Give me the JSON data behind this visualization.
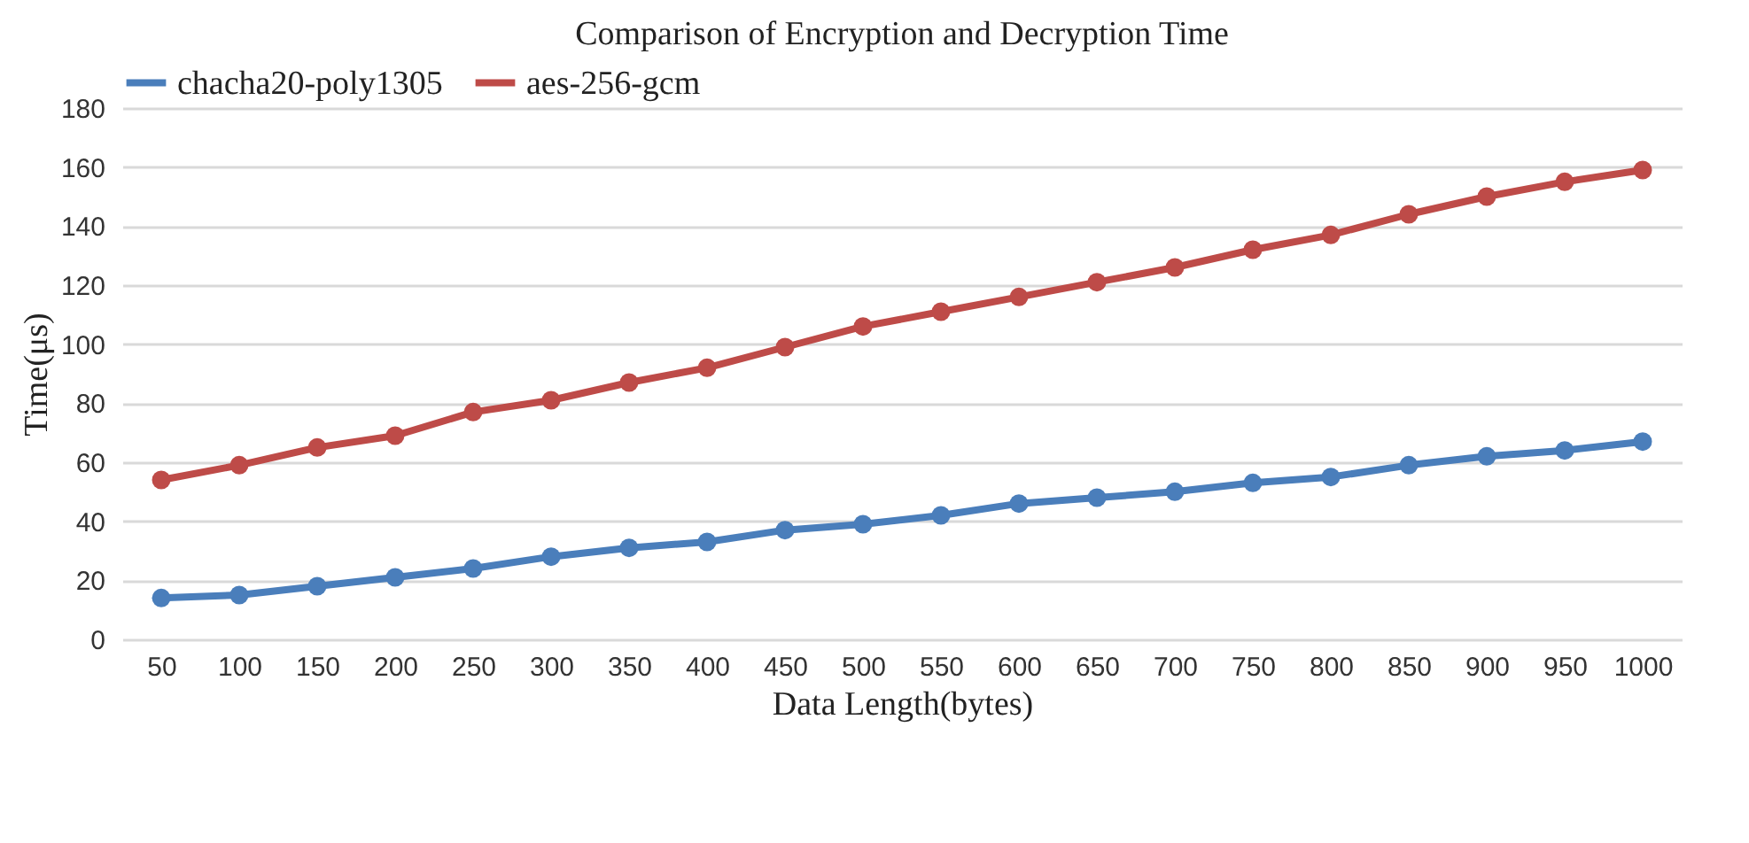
{
  "chart_data": {
    "type": "line",
    "title": "Comparison of Encryption and Decryption Time",
    "xlabel": "Data Length(bytes)",
    "ylabel": "Time(μs)",
    "categories": [
      "50",
      "100",
      "150",
      "200",
      "250",
      "300",
      "350",
      "400",
      "450",
      "500",
      "550",
      "600",
      "650",
      "700",
      "750",
      "800",
      "850",
      "900",
      "950",
      "1000"
    ],
    "series": [
      {
        "name": "chacha20-poly1305",
        "color": "#4a7ebb",
        "values": [
          14,
          15,
          18,
          21,
          24,
          28,
          31,
          33,
          37,
          39,
          42,
          46,
          48,
          50,
          53,
          55,
          59,
          62,
          64,
          67
        ]
      },
      {
        "name": "aes-256-gcm",
        "color": "#be4b48",
        "values": [
          54,
          59,
          65,
          69,
          77,
          81,
          87,
          92,
          99,
          106,
          111,
          116,
          121,
          126,
          132,
          137,
          144,
          150,
          155,
          159
        ]
      }
    ],
    "ylim": [
      0,
      180
    ],
    "yticks": [
      0,
      20,
      40,
      60,
      80,
      100,
      120,
      140,
      160,
      180
    ],
    "grid": "y",
    "legend": "top",
    "marker": "circle"
  }
}
